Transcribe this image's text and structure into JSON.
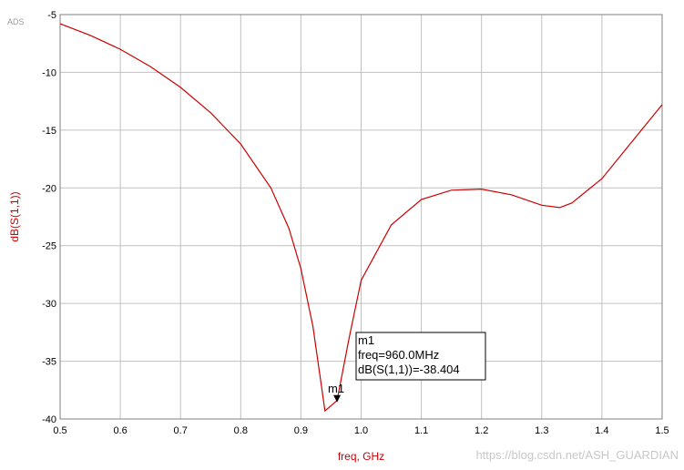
{
  "brand": "ADS",
  "watermark": "https://blog.csdn.net/ASH_GUARDIAN",
  "chart_data": {
    "type": "line",
    "xlabel": "freq, GHz",
    "ylabel": "dB(S(1,1))",
    "xlim": [
      0.5,
      1.5
    ],
    "ylim": [
      -40,
      -5
    ],
    "xticks": [
      "0.5",
      "0.6",
      "0.7",
      "0.8",
      "0.9",
      "1.0",
      "1.1",
      "1.2",
      "1.3",
      "1.4",
      "1.5"
    ],
    "yticks": [
      "-5",
      "-10",
      "-15",
      "-20",
      "-25",
      "-30",
      "-35",
      "-40"
    ],
    "grid": true,
    "series_color": "#cc0000",
    "series": [
      {
        "x": [
          0.5,
          0.55,
          0.6,
          0.65,
          0.7,
          0.75,
          0.8,
          0.85,
          0.88,
          0.9,
          0.92,
          0.94,
          0.96,
          0.98,
          1.0,
          1.05,
          1.1,
          1.15,
          1.2,
          1.25,
          1.3,
          1.33,
          1.35,
          1.4,
          1.45,
          1.5
        ],
        "y": [
          -5.8,
          -6.8,
          -8.0,
          -9.5,
          -11.3,
          -13.5,
          -16.2,
          -20.0,
          -23.5,
          -27.0,
          -32.0,
          -39.3,
          -38.4,
          -33.0,
          -28.0,
          -23.2,
          -21.0,
          -20.2,
          -20.1,
          -20.6,
          -21.5,
          -21.7,
          -21.3,
          -19.2,
          -16.0,
          -12.8
        ]
      }
    ],
    "marker": {
      "name": "m1",
      "x": 0.96,
      "y": -38.404,
      "lines": [
        "m1",
        "freq=960.0MHz",
        "dB(S(1,1))=-38.404"
      ]
    }
  }
}
